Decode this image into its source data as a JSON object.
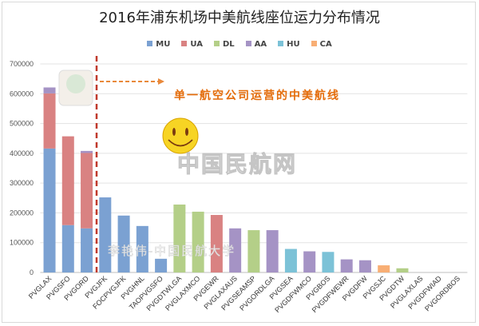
{
  "chart_data": {
    "type": "bar",
    "stacked": true,
    "title": "2016年浦东机场中美航线座位运力分布情况",
    "xlabel": "",
    "ylabel": "",
    "ylim": [
      0,
      700000
    ],
    "yticks": [
      0,
      100000,
      200000,
      300000,
      400000,
      500000,
      600000,
      700000
    ],
    "grid": true,
    "legend_position": "top",
    "categories": [
      "PVGLAX",
      "PVGSFO",
      "PVGORD",
      "PVGJFK",
      "FOCPVGJFK",
      "PVGHNL",
      "TAOPVGSFO",
      "PVGDTWLGA",
      "PVGLAXMCO",
      "PVGEWR",
      "PVGLAXAUS",
      "PVGSEAMSP",
      "PVGORDLGA",
      "PVGSEA",
      "PVGDFWMCO",
      "PVGBOS",
      "PVGDFWEWR",
      "PVGDFW",
      "PVGSJC",
      "PVGDTW",
      "PVGLAXLAS",
      "PVGDFWIAD",
      "PVGORDBOS"
    ],
    "series": [
      {
        "name": "MU",
        "color": "#7ba1d2",
        "values": [
          416000,
          159000,
          148000,
          252000,
          191000,
          156000,
          46000,
          0,
          0,
          0,
          0,
          0,
          0,
          0,
          0,
          0,
          0,
          0,
          0,
          0,
          0,
          0,
          0
        ]
      },
      {
        "name": "UA",
        "color": "#d98282",
        "values": [
          185000,
          298000,
          253000,
          0,
          0,
          0,
          0,
          0,
          0,
          193000,
          0,
          0,
          0,
          0,
          0,
          0,
          0,
          0,
          0,
          0,
          0,
          0,
          0
        ]
      },
      {
        "name": "DL",
        "color": "#b4cf88",
        "values": [
          0,
          0,
          0,
          0,
          0,
          0,
          0,
          228000,
          204000,
          0,
          0,
          142000,
          0,
          0,
          0,
          0,
          0,
          0,
          0,
          14000,
          0,
          0,
          0
        ]
      },
      {
        "name": "AA",
        "color": "#a593c5",
        "values": [
          20000,
          0,
          7000,
          0,
          0,
          0,
          0,
          0,
          0,
          0,
          148000,
          0,
          142000,
          0,
          71000,
          0,
          44000,
          41000,
          0,
          0,
          0,
          0,
          0
        ]
      },
      {
        "name": "HU",
        "color": "#7cc2d7",
        "values": [
          0,
          0,
          0,
          0,
          0,
          0,
          0,
          0,
          0,
          0,
          0,
          0,
          0,
          79000,
          0,
          69000,
          0,
          0,
          0,
          0,
          0,
          0,
          0
        ]
      },
      {
        "name": "CA",
        "color": "#f8ae74",
        "values": [
          0,
          0,
          0,
          0,
          0,
          0,
          0,
          0,
          0,
          0,
          0,
          0,
          0,
          0,
          0,
          0,
          0,
          0,
          24000,
          0,
          0,
          0,
          0
        ]
      }
    ],
    "annotations": {
      "single_airline_note": "单一航空公司运营的中美航线",
      "watermark_site": "中国民航网",
      "watermark_author": "李艳伟-中国民航大学",
      "divider_color": "#c0392b",
      "note_color": "#e46c0a"
    }
  }
}
